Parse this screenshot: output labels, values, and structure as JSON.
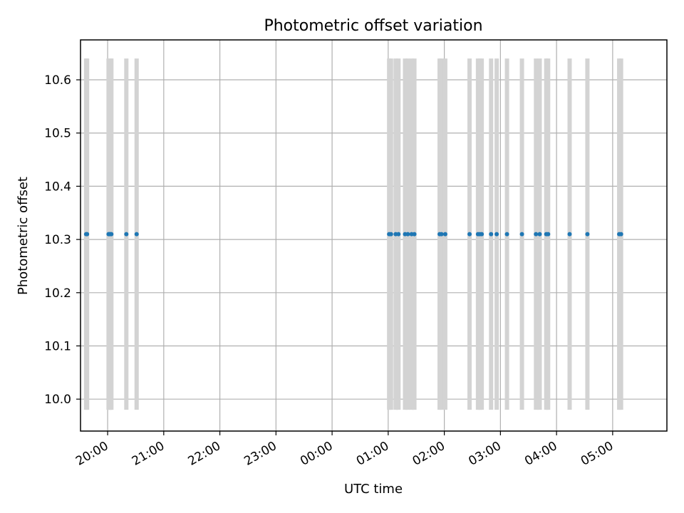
{
  "chart_data": {
    "type": "scatter",
    "title": "Photometric offset variation",
    "xlabel": "UTC time",
    "ylabel": "Photometric offset",
    "grid": true,
    "xlim": [
      "19:31",
      "05:58"
    ],
    "ylim": [
      9.94,
      10.675
    ],
    "xticks": [
      "20:00",
      "21:00",
      "22:00",
      "23:00",
      "00:00",
      "01:00",
      "02:00",
      "03:00",
      "04:00",
      "05:00"
    ],
    "yticks": [
      "10.0",
      "10.1",
      "10.2",
      "10.3",
      "10.4",
      "10.5",
      "10.6"
    ],
    "errorbar_range": [
      9.98,
      10.64
    ],
    "colors": {
      "points": "#1f77b4",
      "errorbars": "#d3d3d3",
      "grid": "#b0b0b0"
    },
    "series": [
      {
        "x": [
          "19:37",
          "19:38",
          "20:01",
          "20:02",
          "20:03",
          "20:04",
          "20:20",
          "20:31",
          "01:01",
          "01:03",
          "01:08",
          "01:11",
          "01:18",
          "01:21",
          "01:25",
          "01:28",
          "01:55",
          "01:57",
          "02:01",
          "02:27",
          "02:36",
          "02:38",
          "02:40",
          "02:50",
          "02:56",
          "03:07",
          "03:23",
          "03:38",
          "03:42",
          "03:49",
          "03:51",
          "04:14",
          "04:33",
          "05:07",
          "05:09"
        ],
        "y": [
          10.31,
          10.31,
          10.31,
          10.31,
          10.31,
          10.31,
          10.31,
          10.31,
          10.31,
          10.31,
          10.31,
          10.31,
          10.31,
          10.31,
          10.31,
          10.31,
          10.31,
          10.31,
          10.31,
          10.31,
          10.31,
          10.31,
          10.31,
          10.31,
          10.31,
          10.31,
          10.31,
          10.31,
          10.31,
          10.31,
          10.31,
          10.31,
          10.31,
          10.31,
          10.31
        ]
      }
    ]
  }
}
